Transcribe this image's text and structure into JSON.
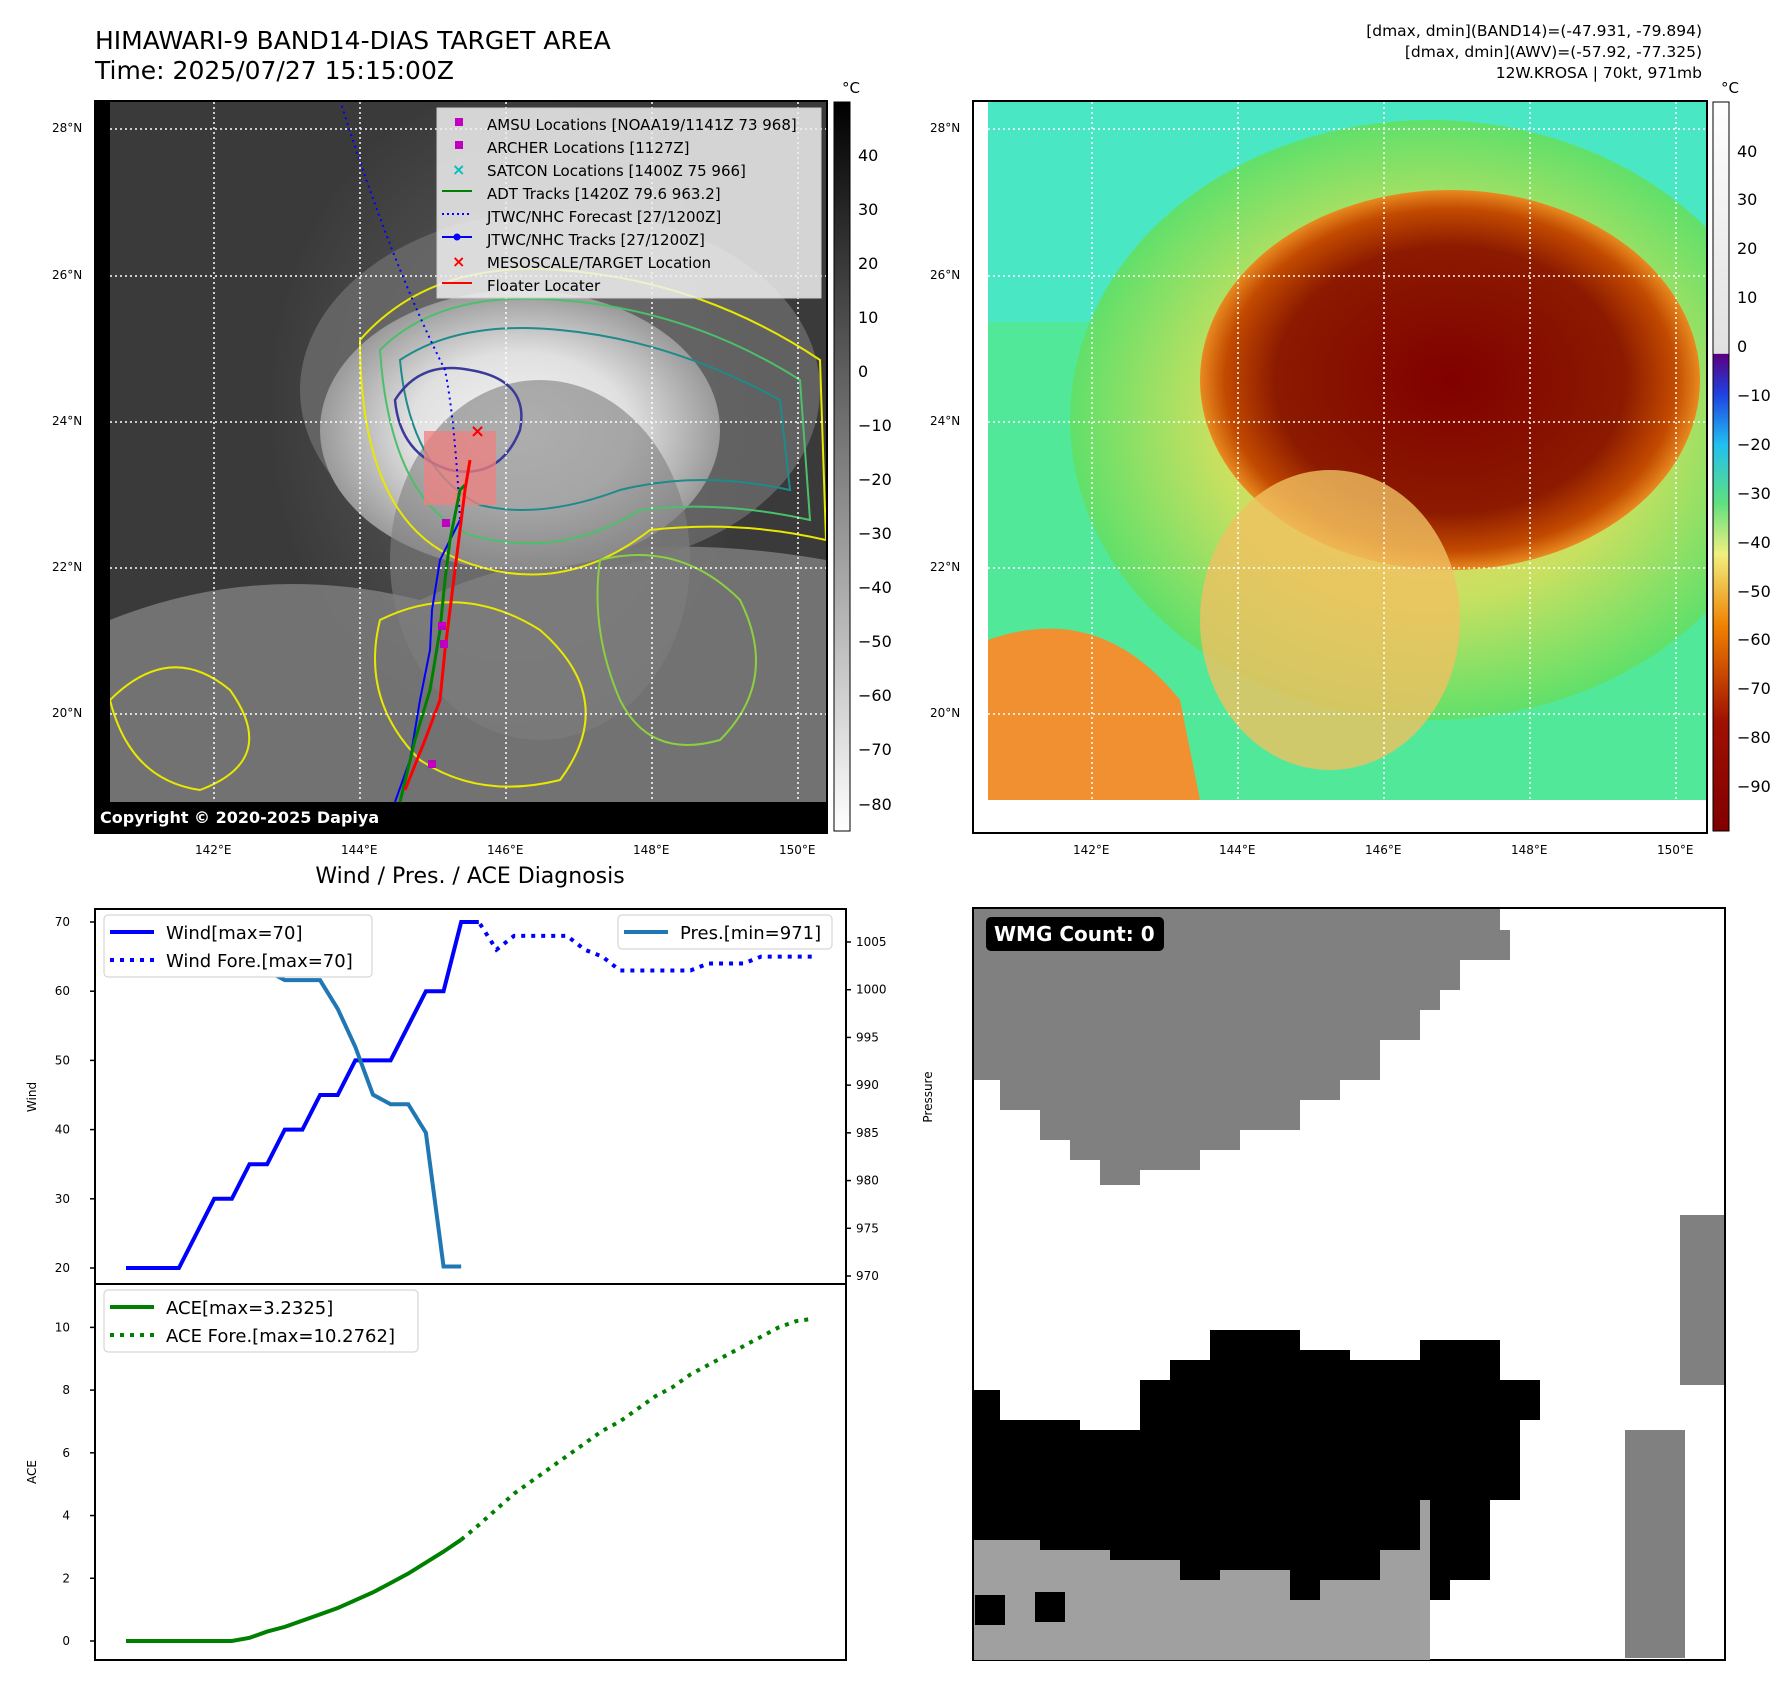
{
  "header": {
    "title_line1": "HIMAWARI-9 BAND14-DIAS TARGET AREA",
    "title_line2": "Time: 2025/07/27 15:15:00Z",
    "stats_line1": "[dmax, dmin](BAND14)=(-47.931, -79.894)",
    "stats_line2": "[dmax, dmin](AWV)=(-57.92, -77.325)",
    "stats_line3": "12W.KROSA | 70kt, 971mb"
  },
  "map_left": {
    "copyright": "Copyright © 2020-2025 Dapiya",
    "lon_ticks": [
      "142°E",
      "144°E",
      "146°E",
      "148°E",
      "150°E"
    ],
    "lat_ticks": [
      "28°N",
      "26°N",
      "24°N",
      "22°N",
      "20°N"
    ],
    "colorbar_unit": "°C",
    "colorbar_ticks": [
      "40",
      "30",
      "20",
      "10",
      "0",
      "−10",
      "−20",
      "−30",
      "−40",
      "−50",
      "−60",
      "−70",
      "−80"
    ],
    "legend": [
      {
        "label": "AMSU Locations [NOAA19/1141Z 73 968]",
        "marker": "square",
        "color": "#c000c0"
      },
      {
        "label": "ARCHER Locations [1127Z]",
        "marker": "square",
        "color": "#c000c0"
      },
      {
        "label": "SATCON Locations [1400Z 75 966]",
        "marker": "x",
        "color": "#00c0c0"
      },
      {
        "label": "ADT Tracks [1420Z 79.6 963.2]",
        "marker": "line",
        "color": "#008000"
      },
      {
        "label": "JTWC/NHC Forecast [27/1200Z]",
        "marker": "dotted",
        "color": "#0000ff"
      },
      {
        "label": "JTWC/NHC Tracks [27/1200Z]",
        "marker": "line-dot",
        "color": "#0000ff"
      },
      {
        "label": "MESOSCALE/TARGET Location",
        "marker": "x",
        "color": "#ff0000"
      },
      {
        "label": "Floater Locater",
        "marker": "line",
        "color": "#ff0000"
      }
    ]
  },
  "map_right": {
    "lon_ticks": [
      "142°E",
      "144°E",
      "146°E",
      "148°E",
      "150°E"
    ],
    "lat_ticks": [
      "28°N",
      "26°N",
      "24°N",
      "22°N",
      "20°N"
    ],
    "colorbar_unit": "°C",
    "colorbar_ticks": [
      "40",
      "30",
      "20",
      "10",
      "0",
      "−10",
      "−20",
      "−30",
      "−40",
      "−50",
      "−60",
      "−70",
      "−80",
      "−90"
    ]
  },
  "colors": {
    "wind": "#0000ff",
    "pressure": "#1f77b4",
    "ace": "#008000",
    "floater": "#ff0000"
  },
  "chart_data": [
    {
      "type": "line",
      "title": "Wind / Pres. / ACE Diagnosis",
      "ylabel": "Wind",
      "ylabel_right": "Pressure",
      "ylim": [
        20,
        70
      ],
      "yticks": [
        "20",
        "30",
        "40",
        "50",
        "60",
        "70"
      ],
      "ylim_right": [
        970,
        1005
      ],
      "yticks_right": [
        "970",
        "975",
        "980",
        "985",
        "990",
        "995",
        "1000",
        "1005"
      ],
      "series": [
        {
          "name": "Wind[max=70]",
          "style": "solid",
          "x": [
            0,
            1,
            2,
            3,
            4,
            5,
            6,
            7,
            8,
            9,
            10,
            11,
            12,
            13,
            14,
            15,
            16,
            17,
            18,
            19,
            20
          ],
          "values": [
            20,
            20,
            20,
            20,
            25,
            30,
            30,
            35,
            35,
            40,
            40,
            45,
            45,
            50,
            50,
            50,
            55,
            60,
            60,
            70,
            70
          ]
        },
        {
          "name": "Wind Fore.[max=70]",
          "style": "dotted",
          "x": [
            19,
            20,
            21,
            22,
            23,
            24,
            25,
            26,
            27,
            28,
            29,
            30,
            31,
            32,
            33,
            34,
            35,
            36,
            37,
            38,
            39
          ],
          "values": [
            70,
            70,
            66,
            68,
            68,
            68,
            68,
            66,
            65,
            63,
            63,
            63,
            63,
            63,
            64,
            64,
            64,
            65,
            65,
            65,
            65
          ]
        },
        {
          "name": "Pres.[min=971]",
          "axis": "right",
          "style": "solid",
          "x": [
            0,
            1,
            2,
            3,
            4,
            5,
            6,
            7,
            8,
            9,
            10,
            11,
            12,
            13,
            14,
            15,
            16,
            17,
            18,
            19
          ],
          "values": [
            1007,
            1007,
            1007,
            1007,
            1005,
            1005,
            1004,
            1002,
            1002,
            1001,
            1001,
            1001,
            998,
            994,
            989,
            988,
            988,
            985,
            971,
            971
          ]
        }
      ]
    },
    {
      "type": "line",
      "ylabel": "ACE",
      "ylim": [
        0,
        11
      ],
      "yticks": [
        "0",
        "2",
        "4",
        "6",
        "8",
        "10"
      ],
      "series": [
        {
          "name": "ACE[max=3.2325]",
          "style": "solid",
          "x": [
            0,
            1,
            2,
            3,
            4,
            5,
            6,
            7,
            8,
            9,
            10,
            11,
            12,
            13,
            14,
            15,
            16,
            17,
            18,
            19
          ],
          "values": [
            0,
            0,
            0,
            0,
            0,
            0,
            0,
            0.1,
            0.3,
            0.45,
            0.65,
            0.85,
            1.05,
            1.3,
            1.55,
            1.85,
            2.15,
            2.5,
            2.85,
            3.23
          ]
        },
        {
          "name": "ACE Fore.[max=10.2762]",
          "style": "dotted",
          "x": [
            19,
            20,
            21,
            22,
            23,
            24,
            25,
            26,
            27,
            28,
            29,
            30,
            31,
            32,
            33,
            34,
            35,
            36,
            37,
            38,
            39
          ],
          "values": [
            3.23,
            3.7,
            4.2,
            4.7,
            5.1,
            5.5,
            5.9,
            6.3,
            6.7,
            7.0,
            7.4,
            7.8,
            8.1,
            8.5,
            8.8,
            9.1,
            9.4,
            9.7,
            10.0,
            10.2,
            10.28
          ]
        }
      ]
    }
  ],
  "wmg": {
    "label": "WMG Count: 0"
  }
}
